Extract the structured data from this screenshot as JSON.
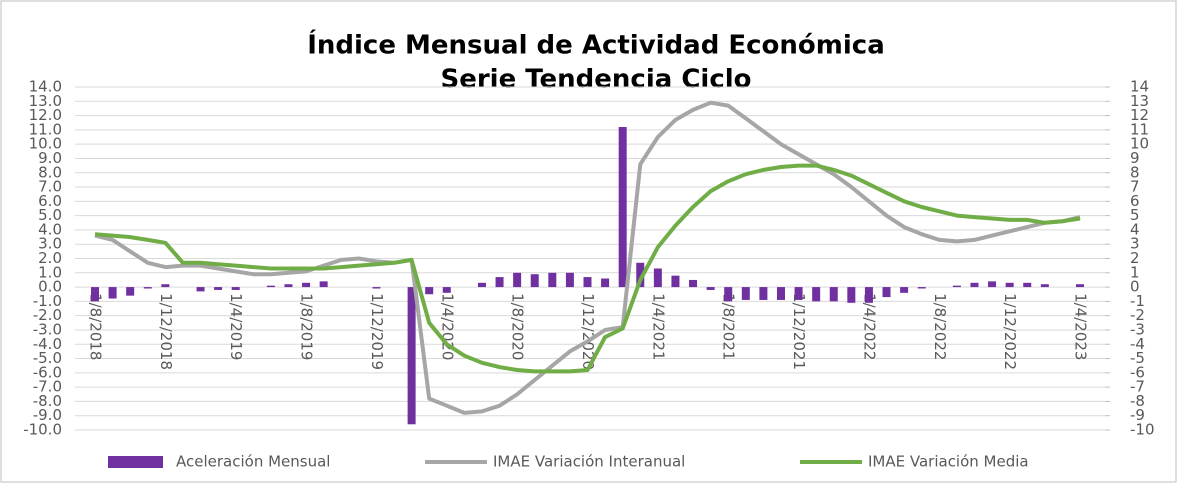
{
  "chart_data": {
    "type": "bar",
    "title": "Índice Mensual de Actividad Económica",
    "subtitle": "Serie Tendencia Ciclo",
    "categories": [
      "1/8/2018",
      null,
      null,
      null,
      "1/12/2018",
      null,
      null,
      null,
      "1/4/2019",
      null,
      null,
      null,
      "1/8/2019",
      null,
      null,
      null,
      "1/12/2019",
      null,
      null,
      null,
      "1/4/2020",
      null,
      null,
      null,
      "1/8/2020",
      null,
      null,
      null,
      "1/12/2020",
      null,
      null,
      null,
      "1/4/2021",
      null,
      null,
      null,
      "1/8/2021",
      null,
      null,
      null,
      "1/12/2021",
      null,
      null,
      null,
      "1/4/2022",
      null,
      null,
      null,
      "1/8/2022",
      null,
      null,
      null,
      "1/12/2022",
      null,
      null,
      null,
      "1/4/2023"
    ],
    "series": [
      {
        "name": "Aceleración Mensual",
        "type": "bar",
        "color": "#7030a0",
        "values": [
          -1.0,
          -0.8,
          -0.6,
          -0.1,
          0.2,
          0,
          -0.3,
          -0.2,
          -0.2,
          0,
          0.1,
          0.2,
          0.3,
          0.4,
          0,
          0,
          -0.1,
          0,
          -9.6,
          -0.5,
          -0.4,
          0,
          0.3,
          0.7,
          1.0,
          0.9,
          1.0,
          1.0,
          0.7,
          0.6,
          11.2,
          1.7,
          1.3,
          0.8,
          0.5,
          -0.2,
          -1.0,
          -0.9,
          -0.9,
          -0.9,
          -0.9,
          -1.0,
          -1.0,
          -1.1,
          -1.1,
          -0.7,
          -0.4,
          -0.1,
          0,
          0.1,
          0.3,
          0.4,
          0.3,
          0.3,
          0.2,
          0,
          0.2
        ]
      },
      {
        "name": "IMAE Variación Interanual",
        "type": "line",
        "axis": "y2",
        "color": "#a6a6a6",
        "values": [
          3.6,
          3.3,
          2.5,
          1.7,
          1.4,
          1.5,
          1.5,
          1.3,
          1.1,
          0.9,
          0.9,
          1.0,
          1.1,
          1.5,
          1.9,
          2.0,
          1.8,
          1.7,
          1.9,
          -7.8,
          -8.3,
          -8.8,
          -8.7,
          -8.3,
          -7.5,
          -6.5,
          -5.5,
          -4.5,
          -3.8,
          -3.0,
          -2.8,
          8.6,
          10.5,
          11.7,
          12.4,
          12.9,
          12.7,
          11.8,
          10.9,
          10.0,
          9.3,
          8.6,
          7.9,
          7.0,
          6.0,
          5.0,
          4.2,
          3.7,
          3.3,
          3.2,
          3.3,
          3.6,
          3.9,
          4.2,
          4.5,
          4.6,
          4.9
        ]
      },
      {
        "name": "IMAE Variación Media",
        "type": "line",
        "axis": "y2",
        "color": "#70ad47",
        "values": [
          3.7,
          3.6,
          3.5,
          3.3,
          3.1,
          1.7,
          1.7,
          1.6,
          1.5,
          1.4,
          1.3,
          1.3,
          1.3,
          1.3,
          1.4,
          1.5,
          1.6,
          1.7,
          1.9,
          -2.5,
          -4.0,
          -4.8,
          -5.3,
          -5.6,
          -5.8,
          -5.9,
          -5.9,
          -5.9,
          -5.8,
          -3.5,
          -2.9,
          0.5,
          2.8,
          4.3,
          5.6,
          6.7,
          7.4,
          7.9,
          8.2,
          8.4,
          8.5,
          8.5,
          8.2,
          7.8,
          7.2,
          6.6,
          6.0,
          5.6,
          5.3,
          5.0,
          4.9,
          4.8,
          4.7,
          4.7,
          4.5,
          4.6,
          4.8
        ]
      }
    ],
    "ylim": [
      -10,
      14
    ],
    "yticks": [
      {
        "value": -10,
        "label": "-10.0"
      },
      {
        "value": -9,
        "label": "-9.0"
      },
      {
        "value": -8,
        "label": "-8.0"
      },
      {
        "value": -7,
        "label": "-7.0"
      },
      {
        "value": -6,
        "label": "-6.0"
      },
      {
        "value": -5,
        "label": "-5.0"
      },
      {
        "value": -4,
        "label": "-4.0"
      },
      {
        "value": -3,
        "label": "-3.0"
      },
      {
        "value": -2,
        "label": "-2.0"
      },
      {
        "value": -1,
        "label": "-1.0"
      },
      {
        "value": 0,
        "label": "0.0"
      },
      {
        "value": 1,
        "label": "1.0"
      },
      {
        "value": 2,
        "label": "2.0"
      },
      {
        "value": 3,
        "label": "3.0"
      },
      {
        "value": 4,
        "label": "4.0"
      },
      {
        "value": 5,
        "label": "5.0"
      },
      {
        "value": 6,
        "label": "6.0"
      },
      {
        "value": 7,
        "label": "7.0"
      },
      {
        "value": 8,
        "label": "8.0"
      },
      {
        "value": 9,
        "label": "9.0"
      },
      {
        "value": 10,
        "label": "10.0"
      },
      {
        "value": 11,
        "label": "11.0"
      },
      {
        "value": 12,
        "label": "12.0"
      },
      {
        "value": 13,
        "label": "13.0"
      },
      {
        "value": 14,
        "label": "14.0"
      }
    ],
    "y2lim": [
      -10,
      14
    ],
    "y2ticks": [
      -10,
      -9,
      -8,
      -7,
      -6,
      -5,
      -4,
      -3,
      -2,
      -1,
      0,
      1,
      2,
      3,
      4,
      5,
      6,
      7,
      8,
      9,
      10,
      11,
      12,
      13,
      14
    ],
    "grid": true,
    "legend": "bottom"
  }
}
